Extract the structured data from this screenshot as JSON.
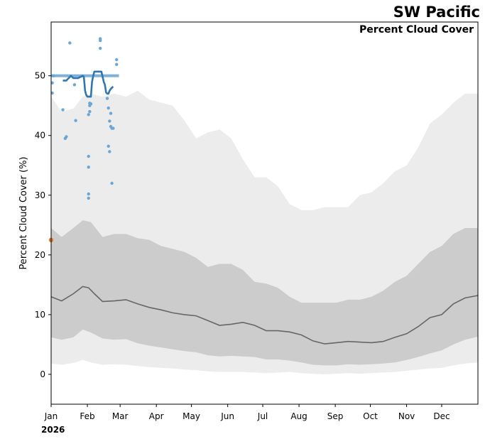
{
  "chart_data": {
    "type": "area",
    "title": "SW Pacific",
    "subtitle": "Percent Cloud Cover",
    "xlabel": "",
    "ylabel": "Percent Cloud Cover (%)",
    "year_label": "2026",
    "x_unit": "day_of_year",
    "xlim": [
      1,
      366
    ],
    "ylim": [
      -5,
      59
    ],
    "y_ticks": [
      0,
      10,
      20,
      30,
      40,
      50
    ],
    "x_ticks": [
      {
        "label": "Jan",
        "day": 1
      },
      {
        "label": "Feb",
        "day": 32
      },
      {
        "label": "Mar",
        "day": 60
      },
      {
        "label": "Apr",
        "day": 91
      },
      {
        "label": "May",
        "day": 121
      },
      {
        "label": "Jun",
        "day": 152
      },
      {
        "label": "Jul",
        "day": 182
      },
      {
        "label": "Aug",
        "day": 213
      },
      {
        "label": "Sep",
        "day": 244
      },
      {
        "label": "Oct",
        "day": 274
      },
      {
        "label": "Nov",
        "day": 305
      },
      {
        "label": "Dec",
        "day": 335
      }
    ],
    "series": [
      {
        "name": "climatology_min_max",
        "color": "#ececec",
        "x": [
          1,
          10,
          20,
          28,
          35,
          45,
          55,
          65,
          75,
          85,
          95,
          105,
          115,
          125,
          135,
          145,
          155,
          165,
          175,
          185,
          195,
          205,
          215,
          225,
          235,
          245,
          255,
          265,
          275,
          285,
          295,
          305,
          315,
          325,
          335,
          345,
          355,
          366
        ],
        "lower": [
          1.8,
          1.6,
          1.9,
          2.4,
          2.0,
          1.6,
          1.7,
          1.6,
          1.4,
          1.2,
          1.1,
          1.0,
          0.8,
          0.7,
          0.5,
          0.4,
          0.4,
          0.4,
          0.3,
          0.2,
          0.3,
          0.4,
          0.2,
          0.1,
          0.0,
          0.1,
          0.2,
          0.1,
          0.2,
          0.3,
          0.4,
          0.6,
          0.8,
          1.0,
          1.1,
          1.5,
          1.8,
          2.0
        ],
        "upper": [
          46.5,
          44.0,
          44.5,
          46.5,
          47.0,
          46.5,
          47.0,
          46.5,
          47.5,
          46.0,
          45.5,
          45.0,
          42.5,
          39.5,
          40.5,
          41.0,
          39.5,
          36.0,
          33.0,
          33.0,
          31.5,
          28.5,
          27.5,
          27.5,
          28.0,
          28.0,
          28.0,
          30.0,
          30.5,
          32.0,
          34.0,
          35.0,
          38.0,
          42.0,
          43.5,
          45.5,
          47.0,
          47.0
        ]
      },
      {
        "name": "climatology_p10_p90",
        "color": "#cccccc",
        "x": [
          1,
          10,
          20,
          28,
          35,
          45,
          55,
          65,
          75,
          85,
          95,
          105,
          115,
          125,
          135,
          145,
          155,
          165,
          175,
          185,
          195,
          205,
          215,
          225,
          235,
          245,
          255,
          265,
          275,
          285,
          295,
          305,
          315,
          325,
          335,
          345,
          355,
          366
        ],
        "lower": [
          6.2,
          5.8,
          6.2,
          7.5,
          7.0,
          6.0,
          5.8,
          5.9,
          5.2,
          4.8,
          4.5,
          4.2,
          3.9,
          3.7,
          3.2,
          3.0,
          3.1,
          3.0,
          2.9,
          2.5,
          2.5,
          2.3,
          2.0,
          1.6,
          1.5,
          1.5,
          1.7,
          1.6,
          1.7,
          1.8,
          2.0,
          2.4,
          2.9,
          3.5,
          4.0,
          5.0,
          5.8,
          6.3
        ],
        "upper": [
          24.5,
          23.0,
          24.5,
          25.8,
          25.5,
          23.0,
          23.5,
          23.5,
          22.8,
          22.5,
          21.5,
          21.0,
          20.5,
          19.5,
          18.0,
          18.5,
          18.5,
          17.5,
          15.5,
          15.2,
          14.5,
          13.0,
          12.0,
          12.0,
          12.0,
          12.0,
          12.5,
          12.5,
          13.0,
          14.0,
          15.5,
          16.5,
          18.5,
          20.5,
          21.5,
          23.5,
          24.5,
          24.5
        ]
      },
      {
        "name": "climatology_median",
        "color": "#666666",
        "x": [
          1,
          10,
          20,
          28,
          33,
          38,
          45,
          55,
          65,
          75,
          85,
          95,
          105,
          115,
          125,
          135,
          145,
          155,
          165,
          175,
          185,
          195,
          205,
          215,
          225,
          235,
          245,
          255,
          265,
          275,
          285,
          295,
          305,
          315,
          325,
          335,
          345,
          355,
          366
        ],
        "values": [
          13.0,
          12.3,
          13.5,
          14.7,
          14.5,
          13.5,
          12.2,
          12.3,
          12.5,
          11.8,
          11.2,
          10.8,
          10.3,
          10.0,
          9.8,
          9.0,
          8.2,
          8.4,
          8.7,
          8.2,
          7.3,
          7.3,
          7.1,
          6.6,
          5.6,
          5.1,
          5.3,
          5.5,
          5.4,
          5.3,
          5.5,
          6.2,
          6.8,
          8.0,
          9.5,
          10.0,
          11.8,
          12.8,
          13.2
        ]
      },
      {
        "name": "observed_range_line",
        "color": "#7fb0d6",
        "x": [
          1,
          59
        ],
        "values": [
          50.0,
          50.0
        ]
      },
      {
        "name": "observed_smoothed",
        "color": "#2f77b0",
        "x": [
          11,
          14,
          16,
          18,
          20,
          22,
          24,
          26,
          28,
          29,
          30,
          31,
          32,
          33,
          34,
          35,
          36,
          37,
          38,
          39,
          40,
          41,
          42,
          44,
          46,
          47,
          48,
          49,
          50,
          51,
          52,
          53,
          54
        ],
        "values": [
          49.2,
          49.2,
          49.6,
          50.0,
          49.6,
          49.6,
          49.6,
          49.8,
          50.0,
          49.8,
          47.5,
          46.8,
          46.5,
          46.5,
          46.5,
          46.5,
          49.0,
          50.0,
          50.7,
          50.7,
          50.7,
          50.7,
          50.7,
          50.7,
          49.0,
          48.5,
          47.2,
          47.0,
          47.0,
          47.5,
          47.8,
          48.0,
          48.2
        ]
      },
      {
        "name": "observed_points",
        "color": "#6aa6d6",
        "x": [
          2,
          2,
          3,
          11,
          13,
          14,
          17,
          21,
          22,
          33,
          33,
          33,
          33,
          33,
          34,
          34,
          34,
          35,
          43,
          43,
          43,
          49,
          50,
          50,
          51,
          51,
          52,
          52,
          53,
          53,
          54,
          57,
          57
        ],
        "values": [
          48.8,
          47.1,
          50.0,
          44.3,
          39.5,
          39.8,
          55.5,
          48.5,
          42.5,
          43.5,
          36.5,
          34.7,
          30.2,
          29.5,
          45.0,
          45.4,
          44.0,
          45.3,
          56.2,
          55.9,
          54.6,
          46.2,
          38.2,
          44.6,
          37.3,
          42.4,
          41.5,
          43.7,
          32.0,
          41.2,
          41.2,
          52.7,
          51.9
        ]
      },
      {
        "name": "current_point",
        "color": "#e07a3a",
        "x": [
          1
        ],
        "values": [
          22.5
        ]
      }
    ]
  }
}
